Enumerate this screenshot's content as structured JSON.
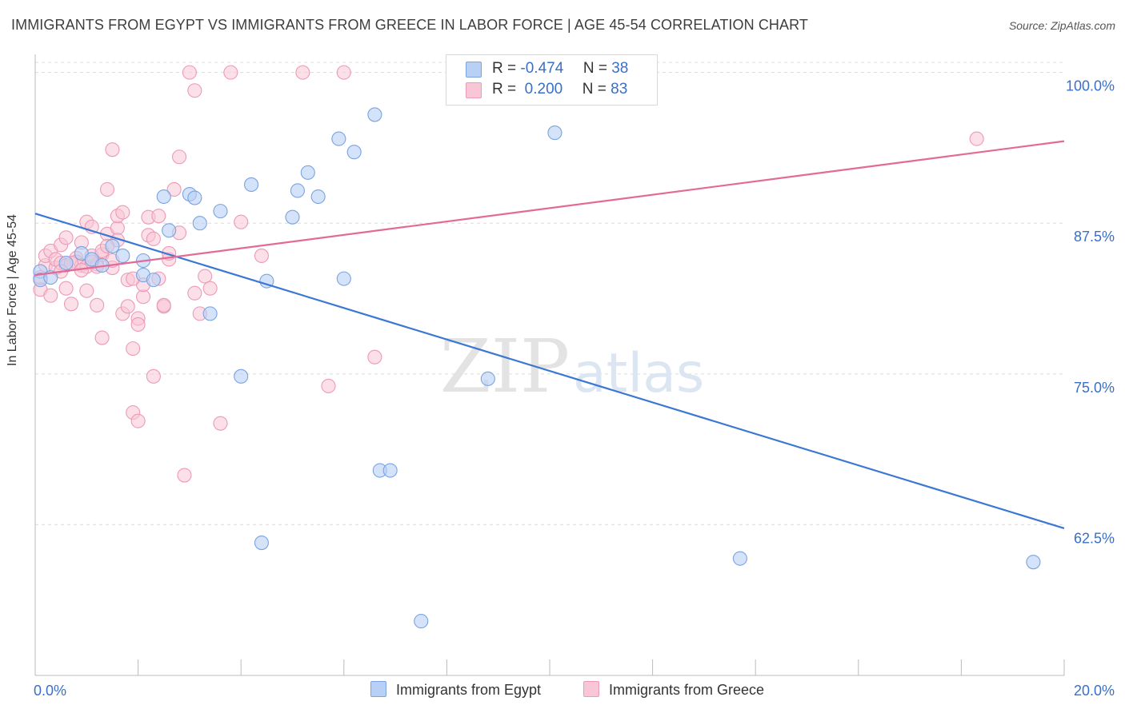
{
  "title": "IMMIGRANTS FROM EGYPT VS IMMIGRANTS FROM GREECE IN LABOR FORCE | AGE 45-54 CORRELATION CHART",
  "source": "Source: ZipAtlas.com",
  "watermark": {
    "zip": "ZIP",
    "atlas": "atlas"
  },
  "legend": {
    "egypt": {
      "r_label": "R =",
      "r_value": "-0.474",
      "n_label": "N =",
      "n_value": "38"
    },
    "greece": {
      "r_label": "R =",
      "r_value": " 0.200",
      "n_label": "N =",
      "n_value": "83"
    }
  },
  "colors": {
    "egypt_fill": "#b8d0f5",
    "egypt_stroke": "#7aa3e0",
    "egypt_line": "#3a78d4",
    "greece_fill": "#f8c6d6",
    "greece_stroke": "#ec9ab8",
    "greece_line": "#e26a95",
    "tick_label": "#3a6fc8",
    "grid": "#dcdcdc"
  },
  "chart_data": {
    "type": "scatter",
    "title": "IMMIGRANTS FROM EGYPT VS IMMIGRANTS FROM GREECE IN LABOR FORCE | AGE 45-54 CORRELATION CHART",
    "xlabel": "",
    "ylabel": "In Labor Force | Age 45-54",
    "xlim": [
      0,
      20
    ],
    "ylim": [
      50,
      101.5
    ],
    "x_tick_labels": [
      {
        "value": 0,
        "label": "0.0%"
      },
      {
        "value": 20,
        "label": "20.0%"
      }
    ],
    "y_tick_labels": [
      {
        "value": 100,
        "label": "100.0%"
      },
      {
        "value": 87.5,
        "label": "87.5%"
      },
      {
        "value": 75,
        "label": "75.0%"
      },
      {
        "value": 62.5,
        "label": "62.5%"
      }
    ],
    "series": [
      {
        "name": "Immigrants from Egypt",
        "color": "#7aa3e0",
        "points": [
          [
            0.1,
            83.5
          ],
          [
            0.1,
            82.8
          ],
          [
            0.3,
            83.0
          ],
          [
            0.6,
            84.2
          ],
          [
            0.9,
            85.0
          ],
          [
            1.1,
            84.5
          ],
          [
            1.3,
            84.0
          ],
          [
            1.5,
            85.6
          ],
          [
            1.7,
            84.8
          ],
          [
            2.1,
            83.2
          ],
          [
            2.1,
            84.4
          ],
          [
            2.3,
            82.8
          ],
          [
            2.5,
            89.7
          ],
          [
            2.6,
            86.9
          ],
          [
            3.0,
            89.9
          ],
          [
            3.1,
            89.6
          ],
          [
            3.2,
            87.5
          ],
          [
            3.4,
            80.0
          ],
          [
            3.6,
            88.5
          ],
          [
            4.0,
            74.8
          ],
          [
            4.2,
            90.7
          ],
          [
            4.4,
            61.0
          ],
          [
            4.5,
            82.7
          ],
          [
            5.0,
            88.0
          ],
          [
            5.1,
            90.2
          ],
          [
            5.3,
            91.7
          ],
          [
            5.5,
            89.7
          ],
          [
            5.9,
            94.5
          ],
          [
            6.0,
            82.9
          ],
          [
            6.2,
            93.4
          ],
          [
            6.6,
            96.5
          ],
          [
            6.7,
            67.0
          ],
          [
            6.9,
            67.0
          ],
          [
            7.5,
            54.5
          ],
          [
            8.8,
            74.6
          ],
          [
            10.1,
            95.0
          ],
          [
            13.7,
            59.7
          ],
          [
            19.4,
            59.4
          ]
        ]
      },
      {
        "name": "Immigrants from Greece",
        "color": "#ec9ab8",
        "points": [
          [
            0.1,
            82.0
          ],
          [
            0.1,
            83.0
          ],
          [
            0.2,
            84.0
          ],
          [
            0.2,
            84.8
          ],
          [
            0.3,
            81.5
          ],
          [
            0.3,
            85.2
          ],
          [
            0.4,
            83.8
          ],
          [
            0.4,
            84.5
          ],
          [
            0.5,
            84.2
          ],
          [
            0.5,
            85.7
          ],
          [
            0.6,
            84.0
          ],
          [
            0.6,
            82.1
          ],
          [
            0.7,
            80.8
          ],
          [
            0.8,
            84.6
          ],
          [
            0.8,
            84.3
          ],
          [
            0.9,
            84.0
          ],
          [
            0.9,
            85.9
          ],
          [
            1.0,
            83.9
          ],
          [
            1.0,
            87.6
          ],
          [
            1.1,
            87.2
          ],
          [
            1.1,
            84.8
          ],
          [
            1.2,
            84.1
          ],
          [
            1.2,
            83.9
          ],
          [
            1.2,
            80.7
          ],
          [
            1.3,
            78.0
          ],
          [
            1.3,
            84.9
          ],
          [
            1.4,
            86.6
          ],
          [
            1.4,
            90.3
          ],
          [
            1.5,
            83.8
          ],
          [
            1.5,
            93.6
          ],
          [
            1.6,
            87.1
          ],
          [
            1.6,
            88.1
          ],
          [
            1.7,
            88.4
          ],
          [
            1.7,
            80.0
          ],
          [
            1.8,
            82.8
          ],
          [
            1.9,
            71.8
          ],
          [
            1.9,
            77.1
          ],
          [
            2.0,
            79.6
          ],
          [
            2.0,
            71.1
          ],
          [
            2.1,
            81.4
          ],
          [
            2.1,
            82.4
          ],
          [
            2.2,
            88.0
          ],
          [
            2.2,
            86.5
          ],
          [
            2.3,
            74.8
          ],
          [
            2.4,
            82.9
          ],
          [
            2.5,
            80.6
          ],
          [
            2.5,
            80.7
          ],
          [
            2.6,
            84.5
          ],
          [
            2.7,
            90.3
          ],
          [
            2.8,
            86.7
          ],
          [
            2.8,
            93.0
          ],
          [
            2.9,
            66.6
          ],
          [
            3.0,
            100.0
          ],
          [
            3.1,
            98.5
          ],
          [
            3.1,
            81.7
          ],
          [
            3.2,
            80.0
          ],
          [
            3.3,
            83.1
          ],
          [
            3.4,
            82.1
          ],
          [
            3.6,
            70.9
          ],
          [
            3.8,
            100.0
          ],
          [
            4.0,
            87.6
          ],
          [
            4.4,
            84.8
          ],
          [
            5.2,
            100.0
          ],
          [
            5.7,
            74.0
          ],
          [
            6.0,
            100.0
          ],
          [
            6.6,
            76.4
          ],
          [
            18.3,
            94.5
          ],
          [
            0.7,
            84.2
          ],
          [
            0.9,
            83.6
          ],
          [
            1.1,
            84.3
          ],
          [
            1.3,
            85.2
          ],
          [
            1.5,
            84.4
          ],
          [
            1.6,
            86.1
          ],
          [
            1.8,
            80.6
          ],
          [
            1.9,
            82.9
          ],
          [
            2.0,
            79.1
          ],
          [
            2.3,
            86.2
          ],
          [
            2.4,
            88.1
          ],
          [
            2.6,
            85.0
          ],
          [
            0.5,
            83.5
          ],
          [
            0.6,
            86.3
          ],
          [
            1.0,
            81.9
          ],
          [
            1.4,
            85.6
          ]
        ]
      }
    ],
    "trendlines": [
      {
        "series": "Immigrants from Egypt",
        "x": [
          0,
          20
        ],
        "y": [
          88.3,
          62.2
        ]
      },
      {
        "series": "Immigrants from Greece",
        "x": [
          0,
          20
        ],
        "y": [
          83.2,
          94.3
        ]
      }
    ],
    "legend_position": "top-center",
    "bottom_legend": [
      "Immigrants from Egypt",
      "Immigrants from Greece"
    ]
  }
}
